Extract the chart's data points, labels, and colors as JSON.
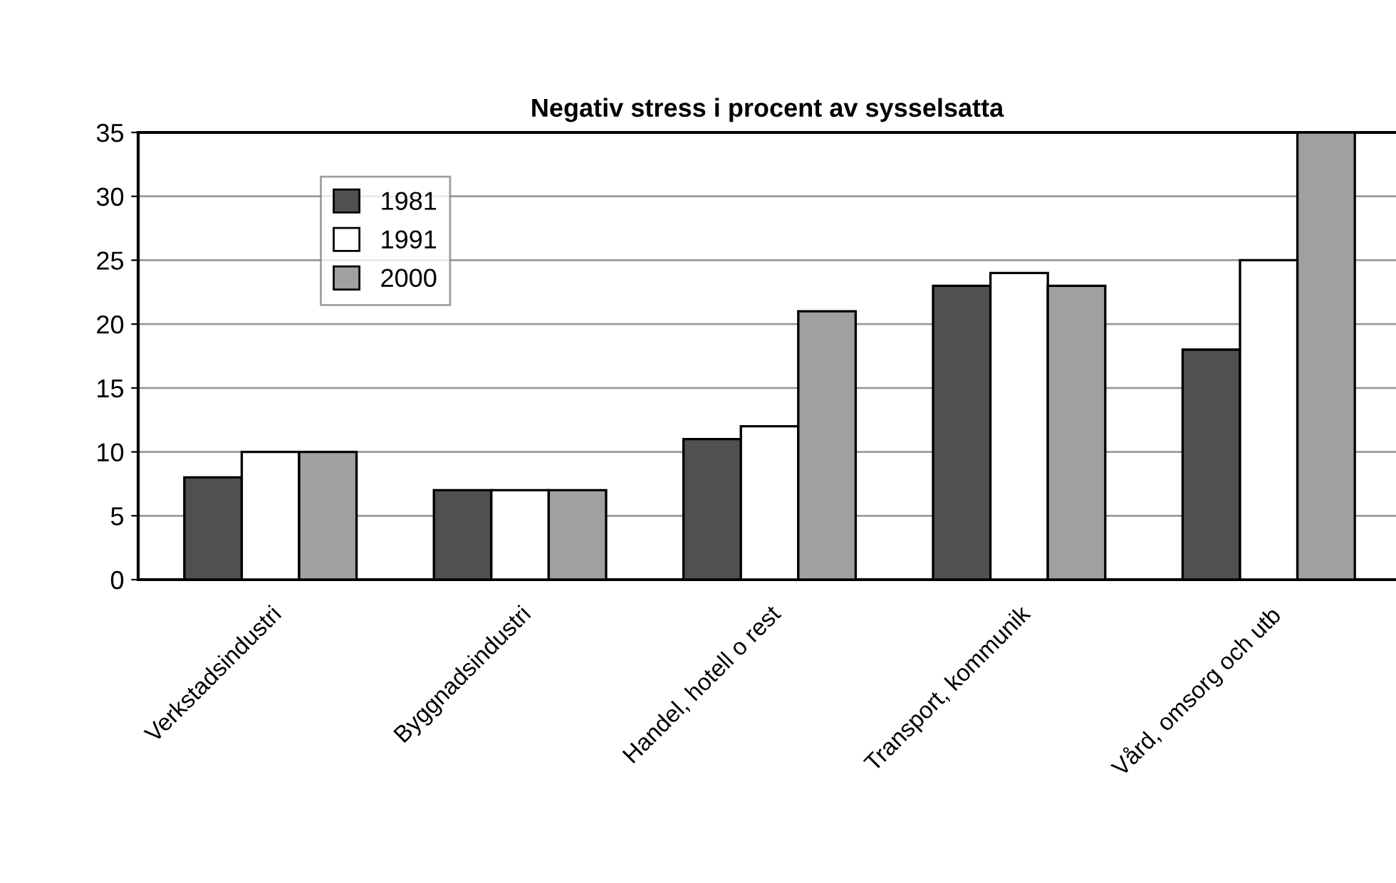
{
  "chart_data": {
    "type": "bar",
    "title": "Negativ stress i procent av sysselsatta",
    "categories": [
      "Verkstadsindustri",
      "Byggnadsindustri",
      "Handel, hotell o rest",
      "Transport, kommunik",
      "Vård, omsorg och utb"
    ],
    "series": [
      {
        "name": "1981",
        "color": "#505050",
        "values": [
          8,
          7,
          11,
          23,
          18
        ]
      },
      {
        "name": "1991",
        "color": "#ffffff",
        "values": [
          10,
          7,
          12,
          24,
          25
        ]
      },
      {
        "name": "2000",
        "color": "#a0a0a0",
        "values": [
          10,
          7,
          21,
          23,
          35
        ]
      }
    ],
    "ylim": [
      0,
      35
    ],
    "yticks": [
      0,
      5,
      10,
      15,
      20,
      25,
      30,
      35
    ],
    "grid": "y",
    "legend": "top left"
  }
}
